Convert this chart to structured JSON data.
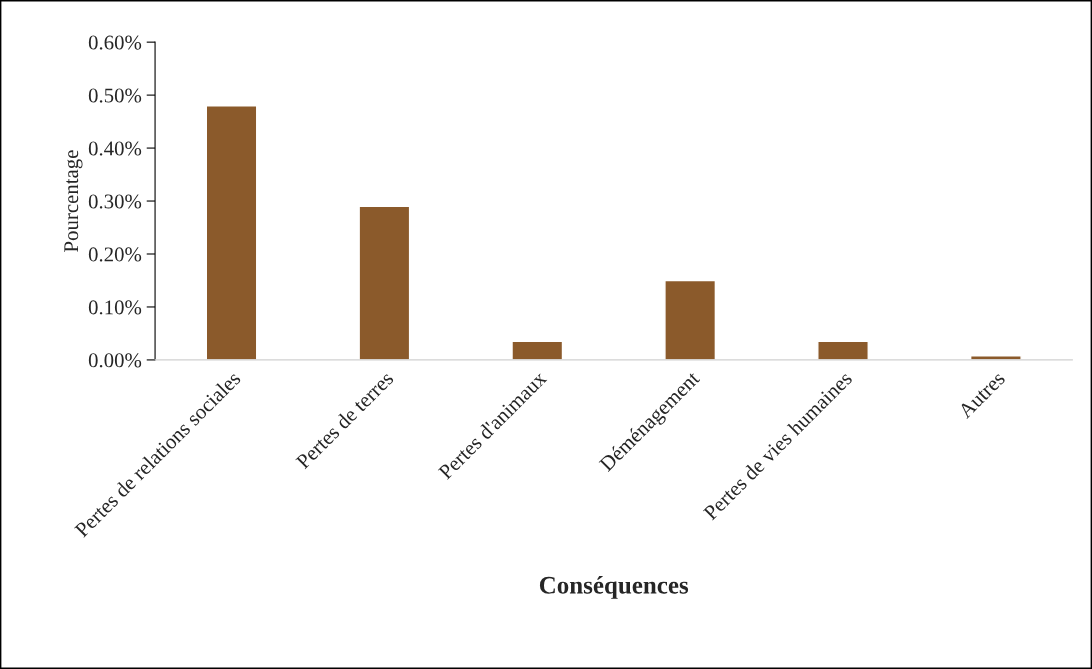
{
  "chart_data": {
    "type": "bar",
    "xlabel": "Conséquences",
    "ylabel": "Pourcentage",
    "categories": [
      "Pertes de relations sociales",
      "Pertes de terres",
      "Pertes d'animaux",
      "Déménagement",
      "Pertes de vies humaines",
      "Autres"
    ],
    "values": [
      0.48,
      0.29,
      0.035,
      0.15,
      0.035,
      0.008
    ],
    "color": "#8b5a2b",
    "ylim": [
      0,
      0.6
    ],
    "yticks": [
      {
        "value": 0,
        "label": "0.00%"
      },
      {
        "value": 0.1,
        "label": "0.10%"
      },
      {
        "value": 0.2,
        "label": "0.20%"
      },
      {
        "value": 0.3,
        "label": "0.30%"
      },
      {
        "value": 0.4,
        "label": "0.40%"
      },
      {
        "value": 0.5,
        "label": "0.50%"
      },
      {
        "value": 0.6,
        "label": "0.60%"
      }
    ],
    "grid": false
  }
}
